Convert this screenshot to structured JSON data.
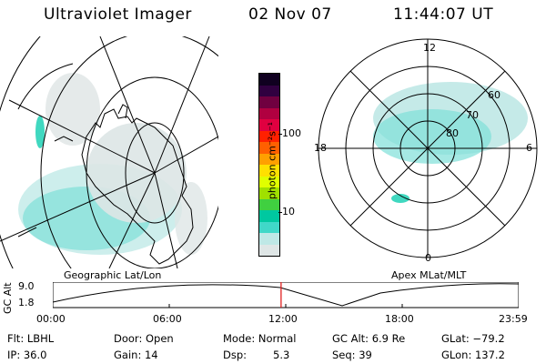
{
  "header": {
    "title": "Ultraviolet Imager",
    "date": "02 Nov 07",
    "time": "11:44:07 UT"
  },
  "colorbar": {
    "unit_label": "photon cm⁻²s⁻¹",
    "tick_100": "100",
    "tick_10": "10",
    "colors": [
      "#dfe6e6",
      "#bfe8e6",
      "#40d8c8",
      "#00c8a0",
      "#40d040",
      "#a0e000",
      "#e0ff00",
      "#ffe000",
      "#ffa000",
      "#ff6000",
      "#ff2000",
      "#e00040",
      "#b00040",
      "#700040",
      "#300040",
      "#100020"
    ]
  },
  "left_panel": {
    "label": "Geographic Lat/Lon"
  },
  "right_panel": {
    "label": "Apex  MLat/MLT",
    "mlt_top": "12",
    "mlt_left": "18",
    "mlt_right": "6",
    "mlt_bottom": "0",
    "lat_60": "60",
    "lat_70": "70",
    "lat_80": "80"
  },
  "timeline": {
    "y_label": "GC Alt",
    "y_top": "9.0",
    "y_bottom": "1.8",
    "ticks": [
      "00:00",
      "06:00",
      "12:00",
      "18:00",
      "23:59"
    ],
    "current_fraction": 0.49
  },
  "info": {
    "flt": "Flt: LBHL",
    "ip": "IP: 36.0",
    "door": "Door: Open",
    "gain": "Gain: 14",
    "mode": "Mode: Normal",
    "dsp_label": "Dsp:",
    "dsp_value": "5.3",
    "gc_alt": "GC Alt: 6.9 Re",
    "seq": "Seq: 39",
    "glat": "GLat: −79.2",
    "glon": "GLon: 137.2"
  }
}
